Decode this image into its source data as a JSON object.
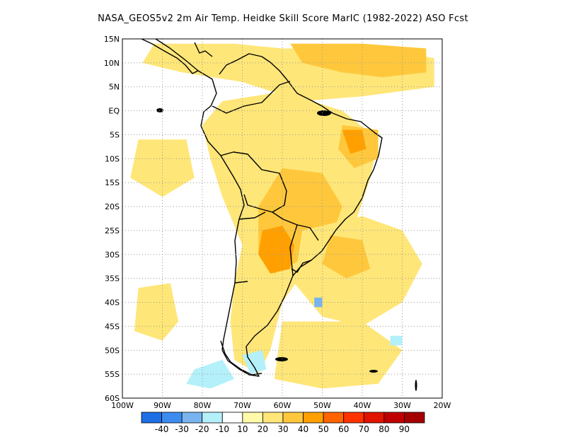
{
  "title": "NASA_GEOS5v2  2m Air Temp. Heidke Skill Score MarIC (1982-2022) ASO Fcst",
  "map": {
    "lon_range": [
      -100,
      -20
    ],
    "lat_range": [
      -60,
      15
    ],
    "lat_ticks": [
      "15N",
      "10N",
      "5N",
      "EQ",
      "5S",
      "10S",
      "15S",
      "20S",
      "25S",
      "30S",
      "35S",
      "40S",
      "45S",
      "50S",
      "55S",
      "60S"
    ],
    "lon_ticks": [
      "100W",
      "90W",
      "80W",
      "70W",
      "60W",
      "50W",
      "40W",
      "30W",
      "20W"
    ],
    "gridlines": true
  },
  "colorbar": {
    "labels": [
      "-40",
      "-30",
      "-20",
      "-10",
      "10",
      "20",
      "30",
      "40",
      "50",
      "60",
      "70",
      "80",
      "90"
    ],
    "colors": [
      "#1e6ee6",
      "#3c8cf0",
      "#78b4f0",
      "#b4f0fa",
      "#ffffff",
      "#fffaaa",
      "#ffe678",
      "#ffc83c",
      "#ffa000",
      "#ff6400",
      "#ff3200",
      "#e11400",
      "#c00000",
      "#a50000"
    ]
  },
  "skill_regions": [
    {
      "level": 20,
      "color": "#ffe678",
      "lonlat": [
        [
          -92,
          14
        ],
        [
          -72,
          14
        ],
        [
          -60,
          13
        ],
        [
          -45,
          13
        ],
        [
          -30,
          12
        ],
        [
          -22,
          11
        ],
        [
          -22,
          5
        ],
        [
          -40,
          3
        ],
        [
          -55,
          2
        ],
        [
          -70,
          6
        ],
        [
          -85,
          8
        ],
        [
          -95,
          10
        ]
      ]
    },
    {
      "level": 30,
      "color": "#ffc83c",
      "lonlat": [
        [
          -58,
          14
        ],
        [
          -40,
          14
        ],
        [
          -24,
          13
        ],
        [
          -24,
          8
        ],
        [
          -35,
          7
        ],
        [
          -45,
          8
        ],
        [
          -55,
          10
        ]
      ]
    },
    {
      "level": 20,
      "color": "#ffe678",
      "lonlat": [
        [
          -75,
          2
        ],
        [
          -60,
          4
        ],
        [
          -45,
          0
        ],
        [
          -36,
          -6
        ],
        [
          -38,
          -14
        ],
        [
          -42,
          -24
        ],
        [
          -48,
          -30
        ],
        [
          -55,
          -34
        ],
        [
          -60,
          -40
        ],
        [
          -63,
          -50
        ],
        [
          -66,
          -55
        ],
        [
          -72,
          -52
        ],
        [
          -73,
          -44
        ],
        [
          -72,
          -36
        ],
        [
          -70,
          -28
        ],
        [
          -75,
          -18
        ],
        [
          -78,
          -10
        ],
        [
          -80,
          -3
        ]
      ]
    },
    {
      "level": 30,
      "color": "#ffc83c",
      "lonlat": [
        [
          -45,
          -3
        ],
        [
          -36,
          -4
        ],
        [
          -36,
          -10
        ],
        [
          -42,
          -12
        ],
        [
          -46,
          -8
        ]
      ]
    },
    {
      "level": 30,
      "color": "#ffc83c",
      "lonlat": [
        [
          -60,
          -12
        ],
        [
          -50,
          -13
        ],
        [
          -45,
          -20
        ],
        [
          -48,
          -27
        ],
        [
          -55,
          -31
        ],
        [
          -62,
          -34
        ],
        [
          -66,
          -30
        ],
        [
          -66,
          -20
        ]
      ]
    },
    {
      "level": 40,
      "color": "#ffa000",
      "lonlat": [
        [
          -65,
          -25
        ],
        [
          -60,
          -24
        ],
        [
          -57,
          -28
        ],
        [
          -58,
          -33
        ],
        [
          -63,
          -34
        ],
        [
          -66,
          -30
        ]
      ]
    },
    {
      "level": 40,
      "color": "#ffa000",
      "lonlat": [
        [
          -45,
          -4
        ],
        [
          -40,
          -4
        ],
        [
          -39,
          -8
        ],
        [
          -43,
          -9
        ]
      ]
    },
    {
      "level": 20,
      "color": "#ffe678",
      "lonlat": [
        [
          -55,
          -25
        ],
        [
          -40,
          -22
        ],
        [
          -30,
          -25
        ],
        [
          -25,
          -32
        ],
        [
          -30,
          -40
        ],
        [
          -40,
          -45
        ],
        [
          -50,
          -43
        ],
        [
          -57,
          -36
        ]
      ]
    },
    {
      "level": 30,
      "color": "#ffc83c",
      "lonlat": [
        [
          -48,
          -26
        ],
        [
          -40,
          -27
        ],
        [
          -38,
          -33
        ],
        [
          -44,
          -35
        ],
        [
          -50,
          -32
        ]
      ]
    },
    {
      "level": 20,
      "color": "#ffe678",
      "lonlat": [
        [
          -96,
          -37
        ],
        [
          -88,
          -36
        ],
        [
          -86,
          -44
        ],
        [
          -90,
          -48
        ],
        [
          -97,
          -46
        ]
      ]
    },
    {
      "level": 20,
      "color": "#ffe678",
      "lonlat": [
        [
          -96,
          -6
        ],
        [
          -84,
          -6
        ],
        [
          -82,
          -14
        ],
        [
          -90,
          -18
        ],
        [
          -98,
          -14
        ]
      ]
    },
    {
      "level": 20,
      "color": "#ffe678",
      "lonlat": [
        [
          -60,
          -44
        ],
        [
          -40,
          -44
        ],
        [
          -30,
          -50
        ],
        [
          -36,
          -57
        ],
        [
          -50,
          -58
        ],
        [
          -62,
          -56
        ]
      ]
    },
    {
      "level": -10,
      "color": "#b4f0fa",
      "lonlat": [
        [
          -82,
          -54
        ],
        [
          -75,
          -52
        ],
        [
          -72,
          -56
        ],
        [
          -78,
          -58
        ],
        [
          -84,
          -57
        ]
      ]
    },
    {
      "level": -10,
      "color": "#b4f0fa",
      "lonlat": [
        [
          -70,
          -51
        ],
        [
          -65,
          -50
        ],
        [
          -64,
          -54
        ],
        [
          -68,
          -55
        ]
      ]
    },
    {
      "level": -20,
      "color": "#78b4f0",
      "lonlat": [
        [
          -52,
          -39
        ],
        [
          -50,
          -39
        ],
        [
          -50,
          -41
        ],
        [
          -52,
          -41
        ]
      ]
    },
    {
      "level": -10,
      "color": "#b4f0fa",
      "lonlat": [
        [
          -33,
          -47
        ],
        [
          -30,
          -47
        ],
        [
          -30,
          -49
        ],
        [
          -33,
          -49
        ]
      ]
    }
  ]
}
